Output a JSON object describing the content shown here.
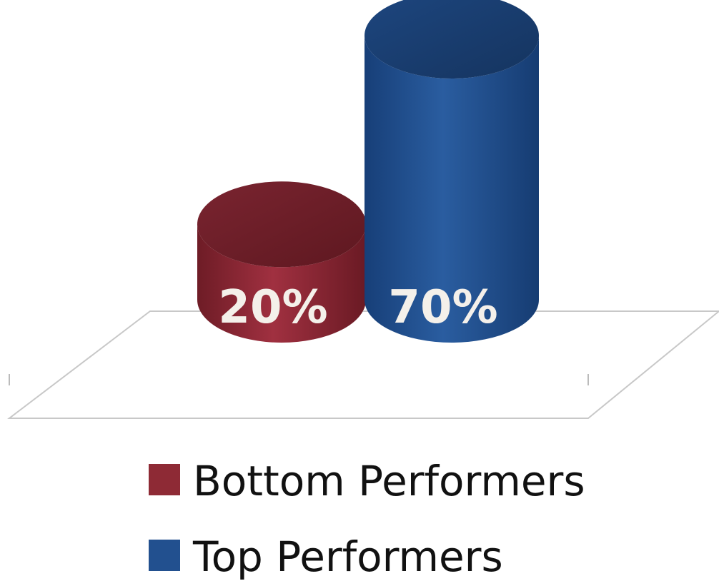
{
  "chart_data": {
    "type": "bar",
    "style": "3d-cylinder",
    "categories": [
      ""
    ],
    "series": [
      {
        "name": "Bottom Performers",
        "values": [
          20
        ],
        "label": "20%",
        "color": "#8e2a35"
      },
      {
        "name": "Top Performers",
        "values": [
          70
        ],
        "label": "70%",
        "color": "#22508f"
      }
    ],
    "unit": "%",
    "ylim": [
      0,
      100
    ],
    "grid": false,
    "legend_position": "bottom"
  }
}
